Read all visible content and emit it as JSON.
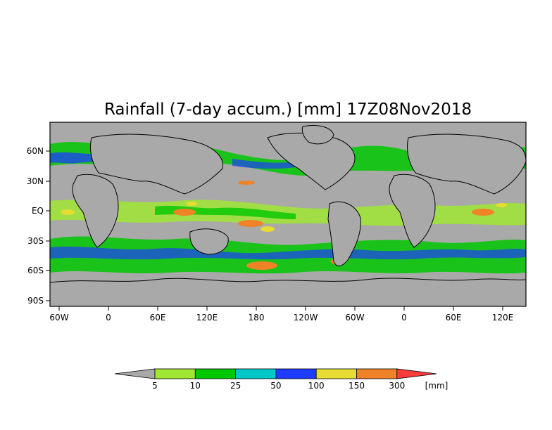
{
  "title": "Rainfall (7-day accum.) [mm] 17Z08Nov2018",
  "map": {
    "type": "precipitation-map",
    "lat_ticks": [
      "60N",
      "30N",
      "EQ",
      "30S",
      "60S",
      "90S"
    ],
    "lon_ticks": [
      "60W",
      "0",
      "60E",
      "120E",
      "180",
      "120W",
      "60W",
      "0",
      "60E",
      "120E"
    ],
    "background_color": "#a9a9a9",
    "coastline_color": "#000000"
  },
  "colorbar": {
    "unit": "[mm]",
    "labels": [
      "5",
      "10",
      "25",
      "50",
      "100",
      "150",
      "300"
    ],
    "colors": {
      "below": "#a9a9a9",
      "bins": [
        "#a0e632",
        "#00c800",
        "#00c8c8",
        "#1e3cff",
        "#e6dc32",
        "#f08228"
      ],
      "above": "#fa3c3c"
    }
  }
}
